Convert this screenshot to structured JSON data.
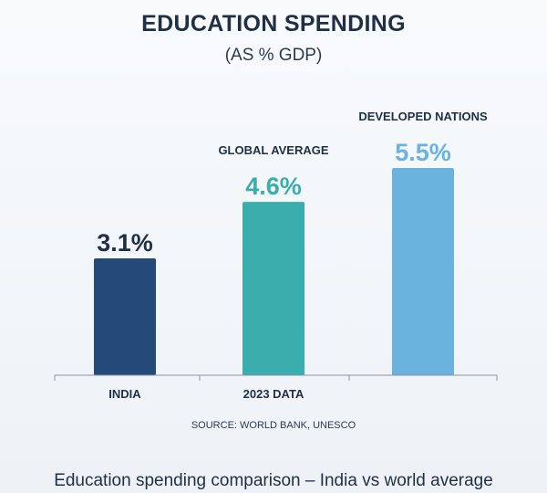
{
  "chart_data": {
    "type": "bar",
    "title": "EDUCATION SPENDING",
    "subtitle": "(AS % GDP)",
    "categories": [
      "INDIA",
      "GLOBAL AVERAGE",
      "DEVELOPED NATIONS"
    ],
    "values": [
      3.1,
      4.6,
      5.5
    ],
    "value_labels": [
      "3.1%",
      "4.6%",
      "5.5%"
    ],
    "x_tick_labels": [
      "INDIA",
      "2023 DATA",
      ""
    ],
    "colors": [
      "#234a78",
      "#3aadad",
      "#6ab3de"
    ],
    "label_colors": [
      "#1f2f44",
      "#3aadad",
      "#6ab3de"
    ],
    "axis_color": "#8a94a2",
    "ylim": [
      0,
      5.5
    ],
    "grid": false,
    "legend": "none",
    "source": "SOURCE: WORLD BANK, UNESCO"
  },
  "caption": "Education spending comparison – India vs world average"
}
